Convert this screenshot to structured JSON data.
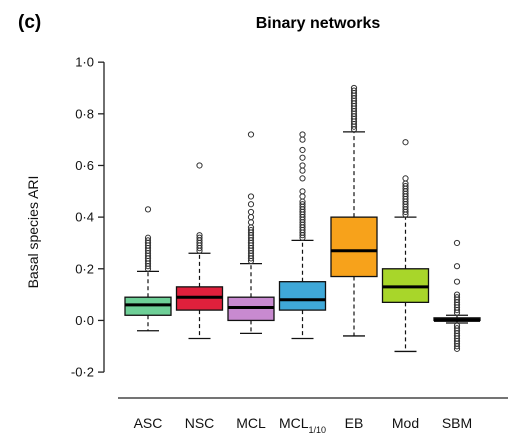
{
  "panel_label": "(c)",
  "chart_data": {
    "type": "boxplot",
    "title": "Binary networks",
    "xlabel": "",
    "ylabel": "Basal species ARI",
    "ylim": [
      -0.25,
      1.02
    ],
    "yticks": [
      -0.2,
      0.0,
      0.2,
      0.4,
      0.6,
      0.8,
      1.0
    ],
    "ytick_labels": [
      "-0·2",
      "0·0",
      "0·2",
      "0·4",
      "0·6",
      "0·8",
      "1·0"
    ],
    "grid": false,
    "legend": "none",
    "categories": [
      {
        "label": "ASC",
        "sub": ""
      },
      {
        "label": "NSC",
        "sub": ""
      },
      {
        "label": "MCL",
        "sub": ""
      },
      {
        "label": "MCL",
        "sub": "1/10"
      },
      {
        "label": "EB",
        "sub": ""
      },
      {
        "label": "Mod",
        "sub": ""
      },
      {
        "label": "SBM",
        "sub": ""
      }
    ],
    "boxes": [
      {
        "color": "#6ecf97",
        "whisker_low": -0.04,
        "q1": 0.02,
        "median": 0.06,
        "q3": 0.09,
        "whisker_high": 0.19,
        "outliers": [
          0.2,
          0.21,
          0.22,
          0.23,
          0.24,
          0.25,
          0.26,
          0.27,
          0.28,
          0.29,
          0.3,
          0.31,
          0.32,
          0.43
        ]
      },
      {
        "color": "#e0203c",
        "whisker_low": -0.07,
        "q1": 0.04,
        "median": 0.09,
        "q3": 0.13,
        "whisker_high": 0.26,
        "outliers": [
          0.27,
          0.28,
          0.29,
          0.3,
          0.31,
          0.32,
          0.33,
          0.6
        ]
      },
      {
        "color": "#c88ad0",
        "whisker_low": -0.05,
        "q1": 0.0,
        "median": 0.05,
        "q3": 0.09,
        "whisker_high": 0.22,
        "outliers": [
          0.23,
          0.24,
          0.25,
          0.26,
          0.27,
          0.28,
          0.29,
          0.3,
          0.31,
          0.32,
          0.33,
          0.34,
          0.35,
          0.36,
          0.38,
          0.4,
          0.42,
          0.45,
          0.48,
          0.72
        ]
      },
      {
        "color": "#3fa8d8",
        "whisker_low": -0.07,
        "q1": 0.04,
        "median": 0.08,
        "q3": 0.15,
        "whisker_high": 0.31,
        "outliers": [
          0.32,
          0.33,
          0.34,
          0.35,
          0.36,
          0.37,
          0.38,
          0.39,
          0.4,
          0.41,
          0.42,
          0.43,
          0.44,
          0.45,
          0.46,
          0.48,
          0.5,
          0.55,
          0.58,
          0.6,
          0.63,
          0.66,
          0.7,
          0.72
        ]
      },
      {
        "color": "#f7a21b",
        "whisker_low": -0.06,
        "q1": 0.17,
        "median": 0.27,
        "q3": 0.4,
        "whisker_high": 0.73,
        "outliers": [
          0.74,
          0.75,
          0.76,
          0.77,
          0.78,
          0.79,
          0.8,
          0.81,
          0.82,
          0.83,
          0.84,
          0.85,
          0.86,
          0.87,
          0.88,
          0.89,
          0.9
        ]
      },
      {
        "color": "#a8d62a",
        "whisker_low": -0.12,
        "q1": 0.07,
        "median": 0.13,
        "q3": 0.2,
        "whisker_high": 0.4,
        "outliers": [
          0.41,
          0.42,
          0.43,
          0.44,
          0.45,
          0.46,
          0.47,
          0.48,
          0.49,
          0.5,
          0.51,
          0.52,
          0.53,
          0.55,
          0.69
        ]
      },
      {
        "color": "#000000",
        "whisker_low": -0.01,
        "q1": 0.0,
        "median": 0.0,
        "q3": 0.01,
        "whisker_high": 0.02,
        "outliers": [
          -0.11,
          -0.1,
          -0.09,
          -0.08,
          -0.07,
          -0.06,
          -0.05,
          -0.04,
          -0.03,
          -0.02,
          0.03,
          0.04,
          0.05,
          0.06,
          0.07,
          0.08,
          0.09,
          0.1,
          0.15,
          0.21,
          0.3
        ]
      }
    ]
  }
}
